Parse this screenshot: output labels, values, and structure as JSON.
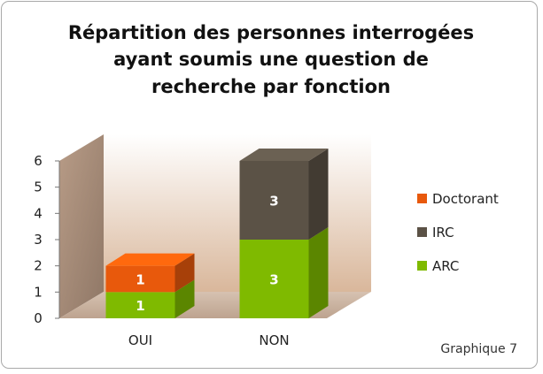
{
  "chart_data": {
    "type": "bar",
    "stacked": true,
    "three_d": true,
    "title_lines": [
      "Répartition des personnes interrogées",
      "ayant soumis une question de",
      "recherche par fonction"
    ],
    "categories": [
      "OUI",
      "NON"
    ],
    "series": [
      {
        "name": "ARC",
        "values": [
          1,
          3
        ],
        "color": "#7fba00"
      },
      {
        "name": "IRC",
        "values": [
          0,
          3
        ],
        "color": "#5b5246"
      },
      {
        "name": "Doctorant",
        "values": [
          1,
          0
        ],
        "color": "#e8590c"
      }
    ],
    "data_labels": [
      [
        "1",
        "3"
      ],
      [
        "",
        "3"
      ],
      [
        "1",
        ""
      ]
    ],
    "ylim": [
      0,
      6
    ],
    "yticks": [
      "0",
      "1",
      "2",
      "3",
      "4",
      "5",
      "6"
    ],
    "legend_position": "right",
    "grid": false,
    "wall_color": "#e2c4ab",
    "floor_color": "#c9b3a0"
  },
  "caption": "Graphique 7"
}
